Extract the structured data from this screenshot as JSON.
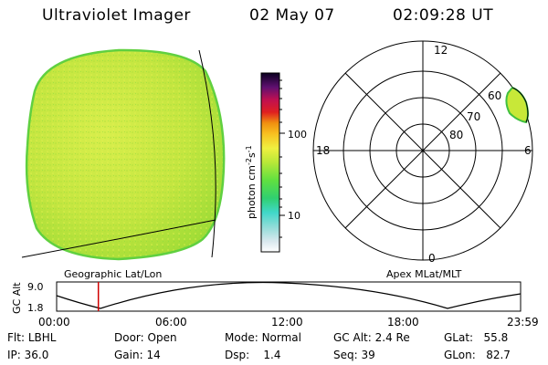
{
  "header": {
    "title": "Ultraviolet Imager",
    "date": "02 May 07",
    "time": "02:09:28 UT"
  },
  "colorbar": {
    "label": "photon cm-2s-1",
    "ticks": [
      "100",
      "10"
    ],
    "scale": "log"
  },
  "polar_plot": {
    "mlt_labels": [
      "12",
      "18",
      "6",
      "0"
    ],
    "lat_labels": [
      "60",
      "70",
      "80"
    ]
  },
  "timeline": {
    "left_title": "Geographic Lat/Lon",
    "right_title": "Apex MLat/MLT",
    "ylabel": "GC Alt",
    "y_ticks": [
      "9.0",
      "1.8"
    ],
    "x_ticks": [
      "00:00",
      "06:00",
      "12:00",
      "18:00",
      "23:59"
    ],
    "cursor_time": "02:09:28",
    "cursor_color": "#d00000"
  },
  "info": {
    "row1": [
      {
        "label": "Flt:",
        "value": "LBHL"
      },
      {
        "label": "Door:",
        "value": "Open"
      },
      {
        "label": "Mode:",
        "value": "Normal"
      },
      {
        "label": "GC Alt:",
        "value": "2.4 Re"
      },
      {
        "label": "GLat:",
        "value": "55.8"
      }
    ],
    "row2": [
      {
        "label": "IP:",
        "value": "36.0"
      },
      {
        "label": "Gain:",
        "value": "14"
      },
      {
        "label": "Dsp:",
        "value": "1.4"
      },
      {
        "label": "Seq:",
        "value": "39"
      },
      {
        "label": "GLon:",
        "value": "82.7"
      }
    ]
  },
  "colors": {
    "image_fill": "#b8e438",
    "image_light": "#d4ec48",
    "image_dark": "#98dc30"
  }
}
